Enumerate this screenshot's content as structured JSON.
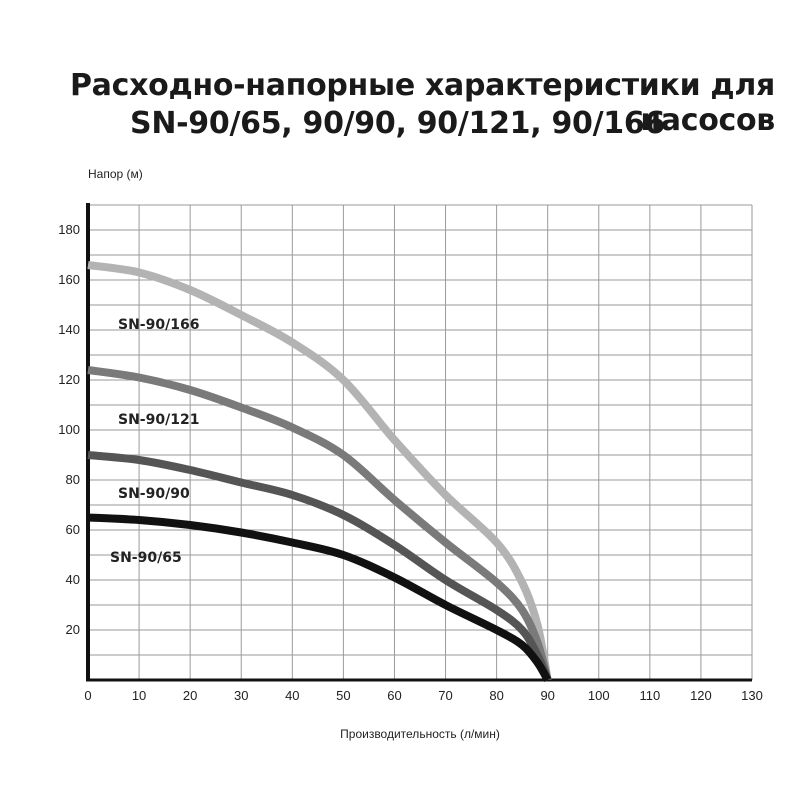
{
  "title": {
    "line1": "Расходно-напорные характеристики для насосов",
    "line2": "SN-90/65, 90/90, 90/121, 90/166"
  },
  "chart_data": {
    "type": "line",
    "xlabel": "Производительность (л/мин)",
    "ylabel": "Напор (м)",
    "xlim": [
      0,
      130
    ],
    "ylim": [
      0,
      190
    ],
    "x_ticks": [
      0,
      10,
      20,
      30,
      40,
      50,
      60,
      70,
      80,
      90,
      100,
      110,
      120,
      130
    ],
    "y_ticks": [
      20,
      40,
      60,
      80,
      100,
      120,
      140,
      160,
      180
    ],
    "grid": true,
    "series": [
      {
        "name": "SN-90/166",
        "color": "#b3b3b3",
        "x": [
          0,
          10,
          20,
          30,
          40,
          50,
          60,
          70,
          80,
          85,
          88,
          90
        ],
        "y": [
          166,
          163,
          156,
          146,
          135,
          120,
          96,
          74,
          55,
          39,
          22,
          0
        ]
      },
      {
        "name": "SN-90/121",
        "color": "#7a7a7a",
        "x": [
          0,
          10,
          20,
          30,
          40,
          50,
          60,
          70,
          80,
          85,
          88,
          90
        ],
        "y": [
          124,
          121,
          116,
          109,
          101,
          90,
          72,
          55,
          39,
          28,
          15,
          0
        ]
      },
      {
        "name": "SN-90/90",
        "color": "#555555",
        "x": [
          0,
          10,
          20,
          30,
          40,
          50,
          60,
          70,
          80,
          85,
          88,
          90
        ],
        "y": [
          90,
          88,
          84,
          79,
          74,
          66,
          54,
          40,
          28,
          20,
          10,
          0
        ]
      },
      {
        "name": "SN-90/65",
        "color": "#111111",
        "x": [
          0,
          10,
          20,
          30,
          40,
          50,
          60,
          70,
          80,
          85,
          88,
          90
        ],
        "y": [
          65,
          64,
          62,
          59,
          55,
          50,
          41,
          30,
          20,
          14,
          7,
          0
        ]
      }
    ]
  }
}
